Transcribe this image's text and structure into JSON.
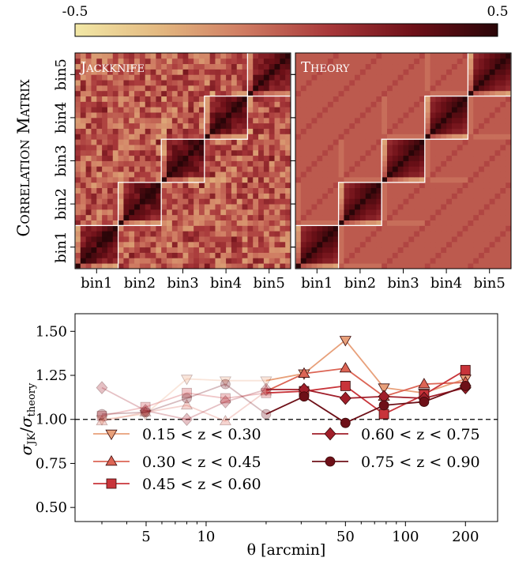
{
  "colorbar": {
    "min_label": "-0.5",
    "max_label": "0.5",
    "vmin": -0.5,
    "vmax": 0.5,
    "colors": [
      "#f2e8a6",
      "#e3b880",
      "#cf7b62",
      "#a8383a",
      "#6e1018",
      "#2a0508"
    ]
  },
  "matrix_panels": {
    "ylabel": "Correlation Matrix",
    "bins": [
      "bin1",
      "bin2",
      "bin3",
      "bin4",
      "bin5"
    ],
    "panels": [
      {
        "title": "Jackknife",
        "style": "noisy"
      },
      {
        "title": "Theory",
        "style": "smooth"
      }
    ]
  },
  "ratio_plot": {
    "ylabel_main": "σ",
    "ylabel_num_sub": "JK",
    "ylabel_den_sub": "theory",
    "xlabel": "θ [arcmin]",
    "yticks": [
      "0.50",
      "0.75",
      "1.00",
      "1.25",
      "1.50"
    ],
    "xticks": [
      "5",
      "10",
      "50",
      "100",
      "200"
    ]
  },
  "chart_data": {
    "type": "line",
    "xscale": "log",
    "xlim": [
      2.2,
      290
    ],
    "ylim": [
      0.42,
      1.6
    ],
    "reference_line": 1.0,
    "legend_placement": "bottom",
    "x": [
      3.0,
      4.96,
      8.0,
      12.5,
      20.0,
      31.0,
      50.0,
      78.0,
      124.0,
      200.0
    ],
    "faded_below_x": 30,
    "series": [
      {
        "name": "0.15 < z < 0.30",
        "marker": "triangle-down",
        "color": "#e8a07a",
        "values": [
          1.0,
          1.03,
          1.23,
          1.22,
          1.22,
          1.26,
          1.45,
          1.18,
          1.15,
          1.23
        ]
      },
      {
        "name": "0.30 < z < 0.45",
        "marker": "triangle-up",
        "color": "#dc6555",
        "values": [
          0.99,
          1.04,
          1.08,
          0.99,
          1.16,
          1.26,
          1.29,
          1.13,
          1.2,
          1.21
        ]
      },
      {
        "name": "0.45 < z < 0.60",
        "marker": "square",
        "color": "#c8343a",
        "values": [
          1.02,
          1.07,
          1.15,
          1.12,
          1.15,
          1.16,
          1.19,
          1.03,
          1.14,
          1.28
        ]
      },
      {
        "name": "0.60 < z < 0.75",
        "marker": "diamond",
        "color": "#a01e2a",
        "values": [
          1.18,
          1.05,
          1.0,
          1.1,
          1.17,
          1.17,
          1.12,
          1.13,
          1.12,
          1.18
        ]
      },
      {
        "name": "0.75 < z < 0.90",
        "marker": "circle",
        "color": "#6e1018",
        "values": [
          1.03,
          1.04,
          1.12,
          1.2,
          1.03,
          1.13,
          0.98,
          1.08,
          1.1,
          1.19
        ]
      }
    ]
  }
}
